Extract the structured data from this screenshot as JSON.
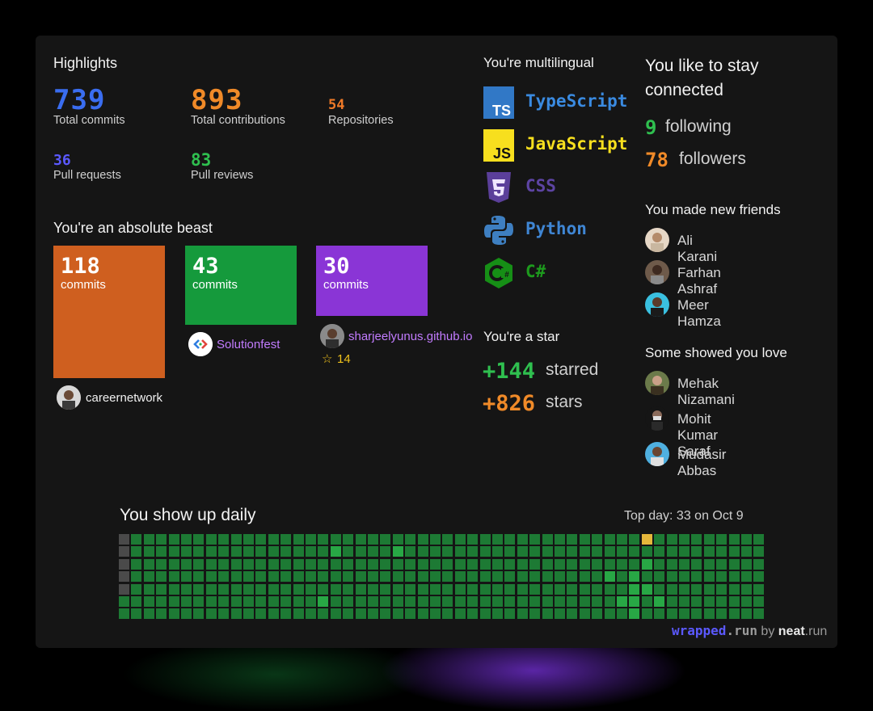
{
  "highlights": {
    "title": "Highlights",
    "total_commits": {
      "value": "739",
      "label": "Total commits"
    },
    "total_contributions": {
      "value": "893",
      "label": "Total contributions"
    },
    "repositories": {
      "value": "54",
      "label": "Repositories"
    },
    "pull_requests": {
      "value": "36",
      "label": "Pull requests"
    },
    "pull_reviews": {
      "value": "83",
      "label": "Pull reviews"
    }
  },
  "beast": {
    "title": "You're an absolute beast",
    "repos": [
      {
        "commits": "118",
        "unit": "commits",
        "name": "careernetwork",
        "color": "#cf5f1f"
      },
      {
        "commits": "43",
        "unit": "commits",
        "name": "Solutionfest",
        "color": "#159a3c"
      },
      {
        "commits": "30",
        "unit": "commits",
        "name": "sharjeelyunus.github.io",
        "stars": "14",
        "color": "#8a35d6"
      }
    ]
  },
  "multilingual": {
    "title": "You're multilingual",
    "languages": [
      {
        "name": "TypeScript",
        "color": "#3178c6",
        "icon": "typescript-icon"
      },
      {
        "name": "JavaScript",
        "color": "#f7df1e",
        "icon": "javascript-icon"
      },
      {
        "name": "CSS",
        "color": "#5b3f9a",
        "icon": "css-icon"
      },
      {
        "name": "Python",
        "color": "#3e7fc1",
        "icon": "python-icon"
      },
      {
        "name": "C#",
        "color": "#1d8a1d",
        "icon": "csharp-icon"
      }
    ]
  },
  "star": {
    "title": "You're a star",
    "starred_value": "+144",
    "starred_label": "starred",
    "stars_value": "+826",
    "stars_label": "stars"
  },
  "connected": {
    "title_line1": "You like to stay",
    "title_line2": "connected",
    "following_value": "9",
    "following_label": "following",
    "followers_value": "78",
    "followers_label": "followers"
  },
  "friends": {
    "title": "You made new friends",
    "people": [
      "Ali Karani",
      "Farhan Ashraf",
      "Meer Hamza"
    ]
  },
  "love": {
    "title": "Some showed you love",
    "people": [
      "Mehak Nizamani",
      "Mohit Kumar Saraf",
      "Mudasir Abbas"
    ]
  },
  "daily": {
    "title": "You show up daily",
    "top_day": "Top day: 33 on Oct 9"
  },
  "footer": {
    "wrapped": "wrapped",
    "run1": ".run",
    "by": " by ",
    "neat": "neat",
    "run2": ".run"
  },
  "colors": {
    "blue": "#3a6df0",
    "orange": "#f08a28",
    "green": "#2fbf4f",
    "violet": "#5b59ff",
    "purple_text": "#c27cff"
  }
}
